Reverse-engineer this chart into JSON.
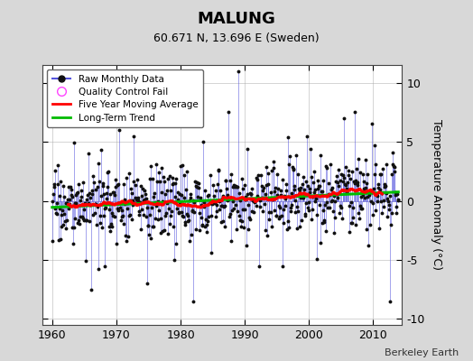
{
  "title": "MALUNG",
  "subtitle": "60.671 N, 13.696 E (Sweden)",
  "ylabel": "Temperature Anomaly (°C)",
  "credit": "Berkeley Earth",
  "xlim": [
    1958.5,
    2014.5
  ],
  "ylim": [
    -10.5,
    11.5
  ],
  "yticks": [
    -10,
    -5,
    0,
    5,
    10
  ],
  "xticks": [
    1960,
    1970,
    1980,
    1990,
    2000,
    2010
  ],
  "bg_color": "#d8d8d8",
  "plot_bg_color": "#ffffff",
  "raw_line_color": "#5555dd",
  "raw_marker_color": "#111111",
  "moving_avg_color": "#ff0000",
  "trend_color": "#00bb00",
  "qc_fail_color": "#ff44ff",
  "seed": 17
}
